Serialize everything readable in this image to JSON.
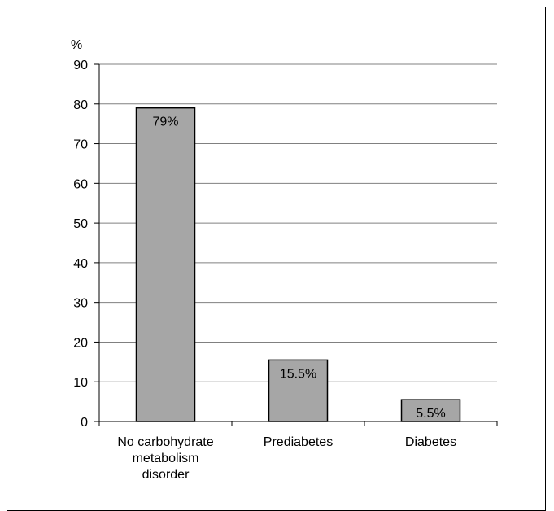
{
  "chart_data": {
    "type": "bar",
    "title": "",
    "xlabel": "",
    "ylabel": "%",
    "categories": [
      [
        "No carbohydrate",
        "metabolism",
        "disorder"
      ],
      [
        "Prediabetes"
      ],
      [
        "Diabetes"
      ]
    ],
    "values": [
      79,
      15.5,
      5.5
    ],
    "data_labels": [
      "79%",
      "15.5%",
      "5.5%"
    ],
    "ylim": [
      0,
      90
    ],
    "yticks": [
      0,
      10,
      20,
      30,
      40,
      50,
      60,
      70,
      80,
      90
    ],
    "grid": true,
    "legend": "none",
    "bar_color": "#a6a6a6",
    "bar_edge_color": "#000000",
    "grid_color": "#808080"
  }
}
